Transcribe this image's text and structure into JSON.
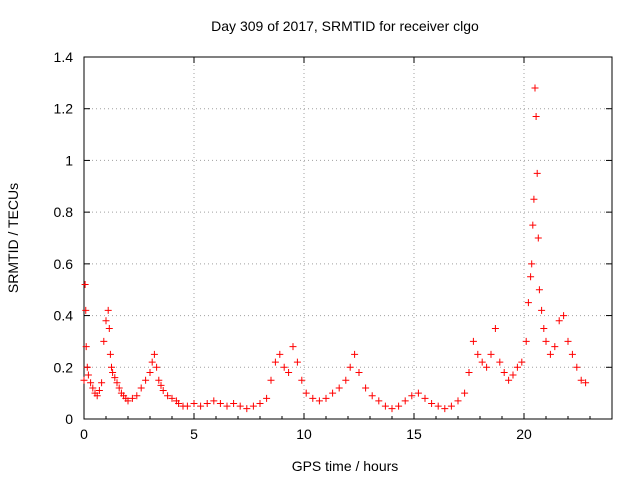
{
  "chart_data": {
    "type": "scatter",
    "title": "Day 309 of 2017, SRMTID for receiver clgo",
    "xlabel": "GPS time / hours",
    "ylabel": "SRMTID / TECUs",
    "xlim": [
      0,
      24
    ],
    "ylim": [
      0,
      1.4
    ],
    "x_ticks": [
      "0",
      "5",
      "10",
      "15",
      "20"
    ],
    "x_tick_values": [
      0,
      5,
      10,
      15,
      20
    ],
    "y_ticks": [
      "0",
      "0.2",
      "0.4",
      "0.6",
      "0.8",
      "1",
      "1.2",
      "1.4"
    ],
    "y_tick_values": [
      0,
      0.2,
      0.4,
      0.6,
      0.8,
      1.0,
      1.2,
      1.4
    ],
    "grid": true,
    "marker": "+",
    "color": "#ff0000",
    "series": [
      {
        "name": "SRMTID",
        "x": [
          0.0,
          0.05,
          0.08,
          0.1,
          0.15,
          0.2,
          0.3,
          0.4,
          0.5,
          0.6,
          0.7,
          0.8,
          0.9,
          1.0,
          1.1,
          1.15,
          1.2,
          1.25,
          1.3,
          1.4,
          1.5,
          1.6,
          1.7,
          1.8,
          1.9,
          2.0,
          2.2,
          2.4,
          2.6,
          2.8,
          3.0,
          3.1,
          3.2,
          3.3,
          3.4,
          3.5,
          3.6,
          3.8,
          4.0,
          4.2,
          4.3,
          4.5,
          4.7,
          5.0,
          5.3,
          5.6,
          5.9,
          6.2,
          6.5,
          6.8,
          7.1,
          7.4,
          7.7,
          8.0,
          8.3,
          8.5,
          8.7,
          8.9,
          9.1,
          9.3,
          9.5,
          9.7,
          9.9,
          10.1,
          10.4,
          10.7,
          11.0,
          11.3,
          11.6,
          11.9,
          12.1,
          12.3,
          12.5,
          12.8,
          13.1,
          13.4,
          13.7,
          14.0,
          14.3,
          14.6,
          14.9,
          15.2,
          15.5,
          15.8,
          16.1,
          16.4,
          16.7,
          17.0,
          17.3,
          17.5,
          17.7,
          17.9,
          18.1,
          18.3,
          18.5,
          18.7,
          18.9,
          19.1,
          19.3,
          19.5,
          19.7,
          19.9,
          20.1,
          20.2,
          20.3,
          20.35,
          20.4,
          20.45,
          20.5,
          20.55,
          20.6,
          20.65,
          20.7,
          20.8,
          20.9,
          21.0,
          21.2,
          21.4,
          21.6,
          21.8,
          22.0,
          22.2,
          22.4,
          22.6,
          22.8
        ],
        "y": [
          0.15,
          0.52,
          0.42,
          0.28,
          0.2,
          0.17,
          0.14,
          0.12,
          0.1,
          0.09,
          0.11,
          0.14,
          0.3,
          0.38,
          0.42,
          0.35,
          0.25,
          0.2,
          0.18,
          0.16,
          0.14,
          0.12,
          0.1,
          0.09,
          0.08,
          0.07,
          0.08,
          0.09,
          0.12,
          0.15,
          0.18,
          0.22,
          0.25,
          0.2,
          0.15,
          0.13,
          0.11,
          0.09,
          0.08,
          0.07,
          0.06,
          0.05,
          0.05,
          0.06,
          0.05,
          0.06,
          0.07,
          0.06,
          0.05,
          0.06,
          0.05,
          0.04,
          0.05,
          0.06,
          0.08,
          0.15,
          0.22,
          0.25,
          0.2,
          0.18,
          0.28,
          0.22,
          0.15,
          0.1,
          0.08,
          0.07,
          0.08,
          0.1,
          0.12,
          0.15,
          0.2,
          0.25,
          0.18,
          0.12,
          0.09,
          0.07,
          0.05,
          0.04,
          0.05,
          0.07,
          0.09,
          0.1,
          0.08,
          0.06,
          0.05,
          0.04,
          0.05,
          0.07,
          0.1,
          0.18,
          0.3,
          0.25,
          0.22,
          0.2,
          0.25,
          0.35,
          0.22,
          0.18,
          0.15,
          0.17,
          0.2,
          0.22,
          0.3,
          0.45,
          0.55,
          0.6,
          0.75,
          0.85,
          1.28,
          1.17,
          0.95,
          0.7,
          0.5,
          0.42,
          0.35,
          0.3,
          0.25,
          0.28,
          0.38,
          0.4,
          0.3,
          0.25,
          0.2,
          0.15,
          0.14
        ]
      }
    ]
  }
}
